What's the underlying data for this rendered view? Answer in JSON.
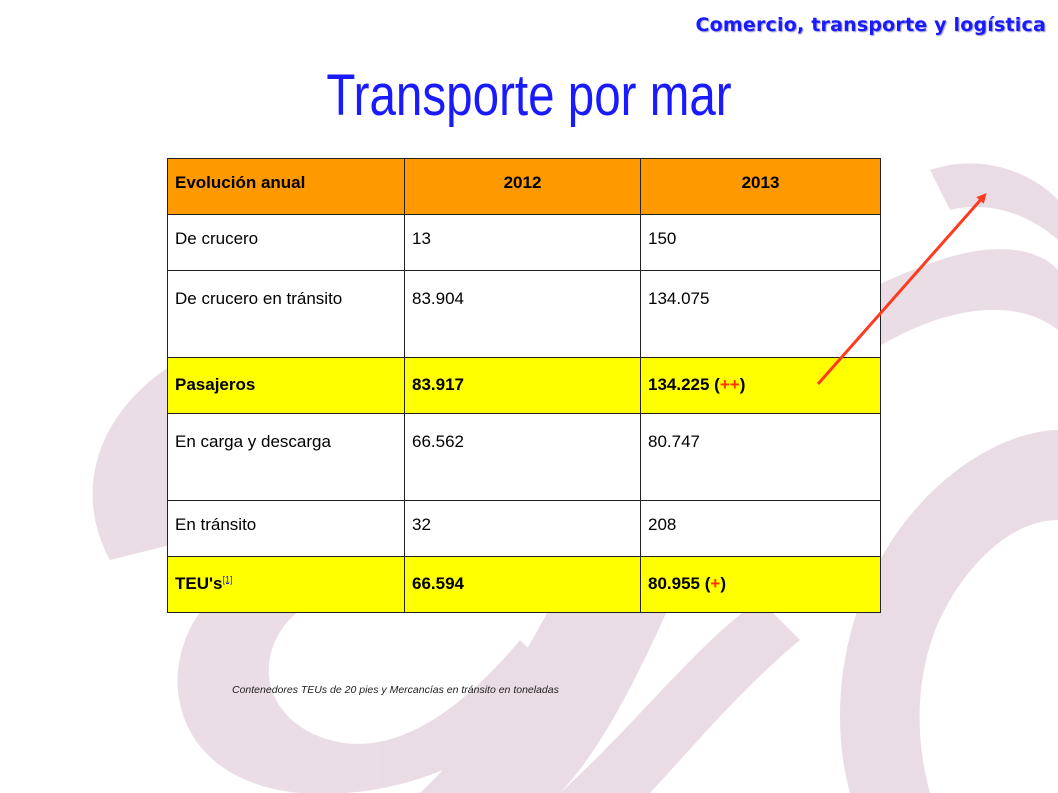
{
  "header": {
    "section": "Comercio, transporte y logística",
    "title": "Transporte por mar"
  },
  "table": {
    "columns": [
      "Evolución anual",
      "2012",
      "2013"
    ],
    "rows": [
      {
        "label": "De crucero",
        "y2012": "13",
        "y2013": "150"
      },
      {
        "label": "De crucero en tránsito",
        "y2012": "83.904",
        "y2013": "134.075"
      },
      {
        "label": "Pasajeros",
        "y2012": "83.917",
        "y2013_value": "134.225",
        "y2013_mark": "++",
        "highlight": true
      },
      {
        "label": "En carga y descarga",
        "y2012": "66.562",
        "y2013": "80.747"
      },
      {
        "label": "En tránsito",
        "y2012": "32",
        "y2013": "208"
      },
      {
        "label": "TEU's",
        "footnote_ref": "[1]",
        "y2012": "66.594",
        "y2013_value": "80.955",
        "y2013_mark": "+",
        "highlight": true
      }
    ]
  },
  "footnote": "Contenedores  TEUs de 20 pies y Mercancías en tránsito en toneladas",
  "colors": {
    "header_fill": "#ff9900",
    "highlight_fill": "#ffff00",
    "title_blue": "#1a1aff",
    "arrow": "#ff3b1f",
    "increase_mark": "#ff3300"
  }
}
